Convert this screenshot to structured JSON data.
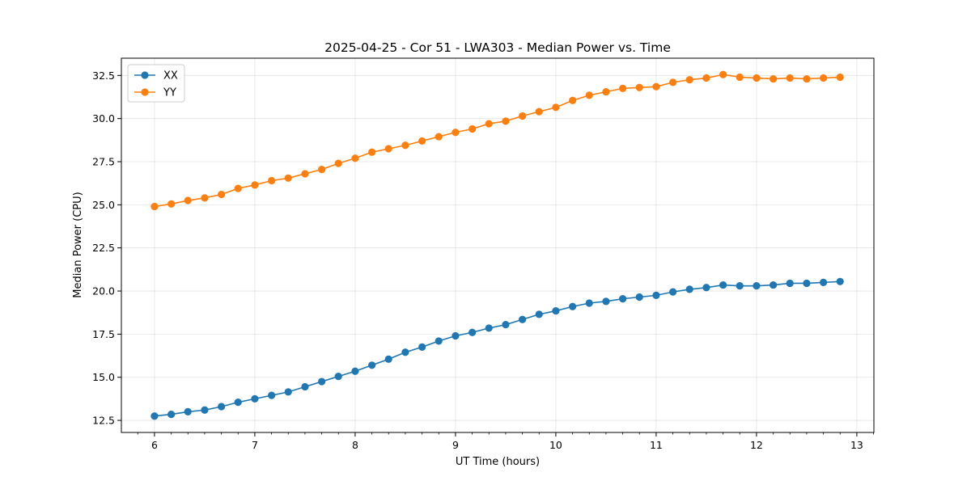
{
  "chart_data": {
    "type": "line",
    "title": "2025-04-25 - Cor 51 - LWA303 - Median Power vs. Time",
    "xlabel": "UT Time (hours)",
    "ylabel": "Median Power (CPU)",
    "xlim": [
      5.67,
      13.17
    ],
    "ylim": [
      11.8,
      33.5
    ],
    "xticks": [
      6,
      7,
      8,
      9,
      10,
      11,
      12,
      13
    ],
    "yticks": [
      12.5,
      15.0,
      17.5,
      20.0,
      22.5,
      25.0,
      27.5,
      30.0,
      32.5
    ],
    "ytick_labels": [
      "12.5",
      "15.0",
      "17.5",
      "20.0",
      "22.5",
      "25.0",
      "27.5",
      "30.0",
      "32.5"
    ],
    "grid": true,
    "legend_position": "top-left",
    "x": [
      6.0,
      6.167,
      6.333,
      6.5,
      6.667,
      6.833,
      7.0,
      7.167,
      7.333,
      7.5,
      7.667,
      7.833,
      8.0,
      8.167,
      8.333,
      8.5,
      8.667,
      8.833,
      9.0,
      9.167,
      9.333,
      9.5,
      9.667,
      9.833,
      10.0,
      10.167,
      10.333,
      10.5,
      10.667,
      10.833,
      11.0,
      11.167,
      11.333,
      11.5,
      11.667,
      11.833,
      12.0,
      12.167,
      12.333,
      12.5,
      12.667,
      12.833
    ],
    "series": [
      {
        "name": "XX",
        "color": "#1f77b4",
        "values": [
          12.75,
          12.85,
          13.0,
          13.1,
          13.3,
          13.55,
          13.75,
          13.95,
          14.15,
          14.45,
          14.75,
          15.05,
          15.35,
          15.7,
          16.05,
          16.45,
          16.75,
          17.1,
          17.4,
          17.6,
          17.85,
          18.05,
          18.35,
          18.65,
          18.85,
          19.1,
          19.3,
          19.4,
          19.55,
          19.65,
          19.75,
          19.95,
          20.1,
          20.2,
          20.35,
          20.3,
          20.3,
          20.35,
          20.45,
          20.45,
          20.5,
          20.55
        ]
      },
      {
        "name": "YY",
        "color": "#ff7f0e",
        "values": [
          24.9,
          25.05,
          25.25,
          25.4,
          25.6,
          25.95,
          26.15,
          26.4,
          26.55,
          26.8,
          27.05,
          27.4,
          27.7,
          28.05,
          28.25,
          28.45,
          28.7,
          28.95,
          29.2,
          29.4,
          29.7,
          29.85,
          30.15,
          30.4,
          30.65,
          31.05,
          31.35,
          31.55,
          31.75,
          31.8,
          31.85,
          32.1,
          32.25,
          32.35,
          32.55,
          32.4,
          32.35,
          32.3,
          32.35,
          32.3,
          32.35,
          32.4
        ]
      }
    ]
  }
}
